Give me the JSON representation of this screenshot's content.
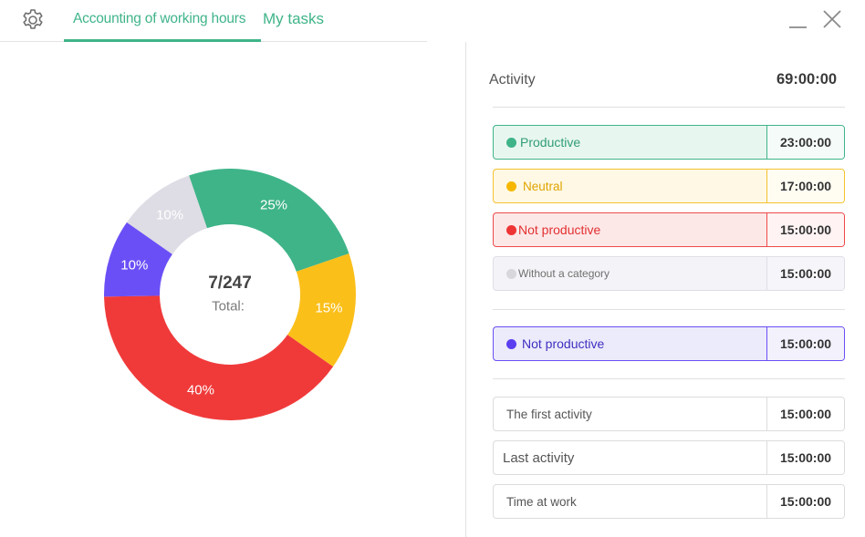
{
  "header": {
    "tabs": [
      {
        "label": "Accounting of working hours",
        "active": true
      },
      {
        "label": "My tasks",
        "active": false
      }
    ],
    "icons": {
      "settings": "gear-icon",
      "minimize": "minimize-icon",
      "close": "close-icon"
    },
    "accent_color": "#3fb489"
  },
  "chart_data": {
    "type": "pie",
    "donut": true,
    "slices": [
      {
        "label": "25%",
        "value": 25,
        "color": "#3fb489"
      },
      {
        "label": "15%",
        "value": 15,
        "color": "#fbbf1a"
      },
      {
        "label": "40%",
        "value": 40,
        "color": "#f03a3a"
      },
      {
        "label": "10%",
        "value": 10,
        "color": "#6b4ff6"
      },
      {
        "label": "10%",
        "value": 10,
        "color": "#dedce4"
      }
    ],
    "center": {
      "value": "7/247",
      "caption": "Total:"
    }
  },
  "activity": {
    "label": "Activity",
    "total": "69:00:00"
  },
  "categories": [
    {
      "label": "Productive",
      "time": "23:00:00",
      "color": "#3fb489"
    },
    {
      "label": "Neutral",
      "time": "17:00:00",
      "color": "#f5b700"
    },
    {
      "label": "Not productive",
      "time": "15:00:00",
      "color": "#ee3434"
    },
    {
      "label": "Without a category",
      "time": "15:00:00",
      "color": "#d8d8dc"
    }
  ],
  "highlight": {
    "label": "Not productive",
    "time": "15:00:00",
    "color": "#5a3ff0"
  },
  "summary": [
    {
      "label": "The first activity",
      "time": "15:00:00"
    },
    {
      "label": "Last activity",
      "time": "15:00:00"
    },
    {
      "label": "Time at work",
      "time": "15:00:00"
    }
  ]
}
